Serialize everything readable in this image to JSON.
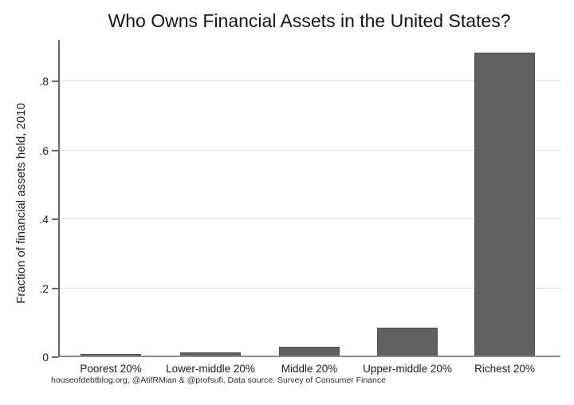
{
  "chart_data": {
    "type": "bar",
    "title": "Who Owns Financial Assets in the United States?",
    "categories": [
      "Poorest 20%",
      "Lower-middle 20%",
      "Middle 20%",
      "Upper-middle 20%",
      "Richest 20%"
    ],
    "values": [
      0.005,
      0.01,
      0.025,
      0.08,
      0.88
    ],
    "xlabel": "",
    "ylabel": "Fraction of financial assets held, 2010",
    "ylim": [
      0,
      0.92
    ],
    "yticks": [
      0,
      0.2,
      0.4,
      0.6,
      0.8
    ],
    "ytick_labels": [
      "0",
      ".2",
      ".4",
      ".6",
      ".8"
    ],
    "grid": "horizontal",
    "legend": "none",
    "bar_color": "#606060",
    "bar_border_color": "#4f4f4f",
    "source_note": "houseofdebtblog.org, @AtifRMian & @profsufi, Data source: Survey of Consumer Finance"
  }
}
